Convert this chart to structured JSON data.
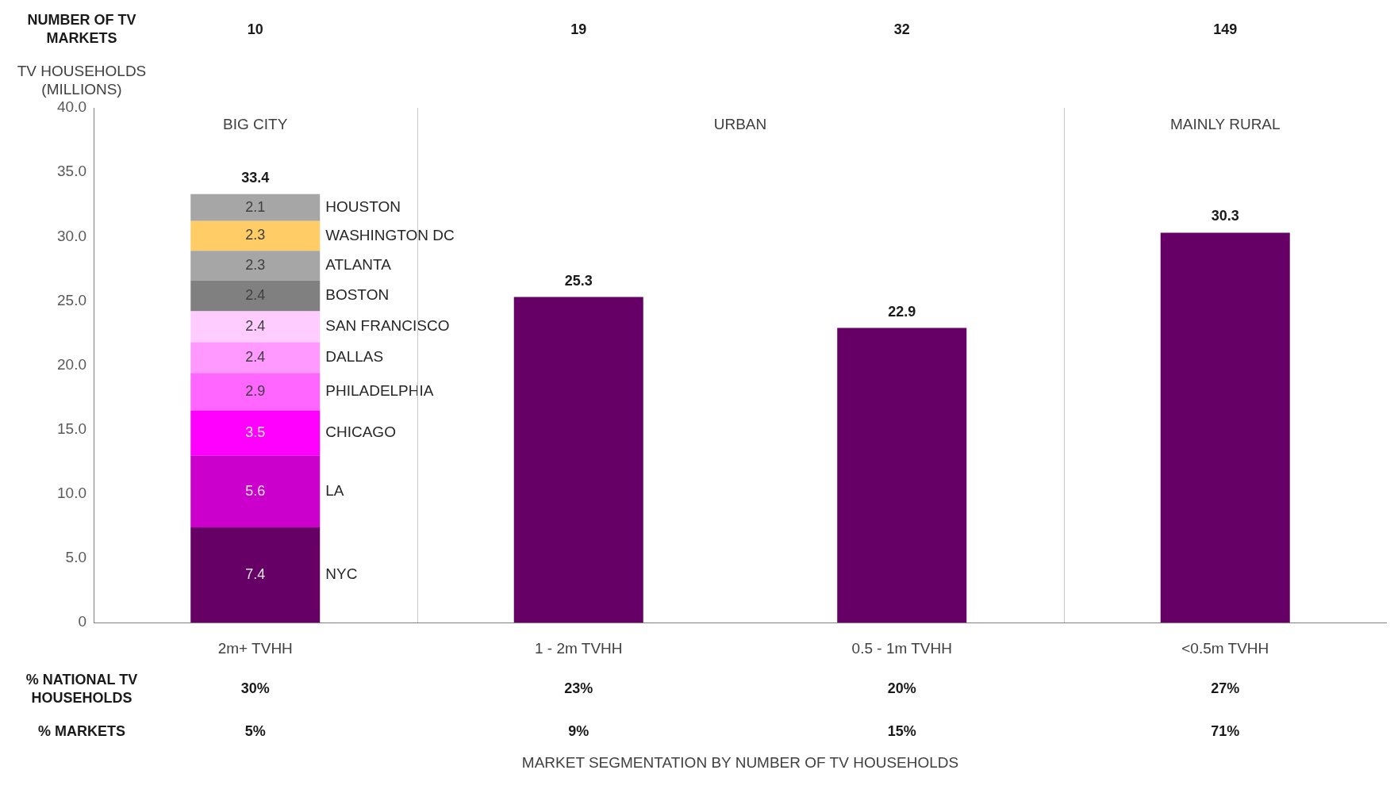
{
  "chart_data": {
    "type": "bar",
    "stacked": true,
    "ylabel": "TV HOUSEHOLDS (MILLIONS)",
    "categories": [
      "2m+ TVHH",
      "1 - 2m TVHH",
      "0.5 - 1m TVHH",
      "<0.5m TVHH"
    ],
    "ylim": [
      0,
      40
    ],
    "yticks": [
      0,
      {
        "value": 5,
        "label": "5.0"
      },
      {
        "value": 10,
        "label": "10.0"
      },
      {
        "value": 15,
        "label": "15.0"
      },
      {
        "value": 20,
        "label": "20.0"
      },
      {
        "value": 25,
        "label": "25.0"
      },
      {
        "value": 30,
        "label": "30.0"
      },
      {
        "value": 35,
        "label": "35.0"
      },
      {
        "value": 40,
        "label": "40.0"
      }
    ],
    "grid": false,
    "legend": false,
    "series": [
      {
        "name": "NYC",
        "color": "#660066",
        "values": [
          7.4,
          null,
          null,
          null
        ],
        "value_labels": [
          "7.4",
          null,
          null,
          null
        ]
      },
      {
        "name": "LA",
        "color": "#cc00cc",
        "values": [
          5.6,
          null,
          null,
          null
        ],
        "value_labels": [
          "5.6",
          null,
          null,
          null
        ]
      },
      {
        "name": "CHICAGO",
        "color": "#ff00ff",
        "values": [
          3.5,
          null,
          null,
          null
        ],
        "value_labels": [
          "3.5",
          null,
          null,
          null
        ]
      },
      {
        "name": "PHILADELPHIA",
        "color": "#ff66ff",
        "values": [
          2.9,
          null,
          null,
          null
        ],
        "value_labels": [
          "2.9",
          null,
          null,
          null
        ]
      },
      {
        "name": "DALLAS",
        "color": "#ff99ff",
        "values": [
          2.4,
          null,
          null,
          null
        ],
        "value_labels": [
          "2.4",
          null,
          null,
          null
        ]
      },
      {
        "name": "SAN FRANCISCO",
        "color": "#ffccff",
        "values": [
          2.4,
          null,
          null,
          null
        ],
        "value_labels": [
          "2.4",
          null,
          null,
          null
        ]
      },
      {
        "name": "BOSTON",
        "color": "#808080",
        "values": [
          2.4,
          null,
          null,
          null
        ],
        "value_labels": [
          "2.4",
          null,
          null,
          null
        ]
      },
      {
        "name": "ATLANTA",
        "color": "#a6a6a6",
        "values": [
          2.3,
          null,
          null,
          null
        ],
        "value_labels": [
          "2.3",
          null,
          null,
          null
        ]
      },
      {
        "name": "WASHINGTON DC",
        "color": "#ffcc66",
        "values": [
          2.3,
          null,
          null,
          null
        ],
        "value_labels": [
          "2.3",
          null,
          null,
          null
        ]
      },
      {
        "name": "HOUSTON",
        "color": "#a6a6a6",
        "values": [
          2.1,
          null,
          null,
          null
        ],
        "value_labels": [
          "2.1",
          null,
          null,
          null
        ]
      },
      {
        "color": "#660066",
        "values": [
          null,
          25.3,
          22.9,
          30.3
        ]
      }
    ],
    "totals": [
      "33.4",
      "25.3",
      "22.9",
      "30.3"
    ],
    "annotations": [
      "BIG CITY",
      "URBAN",
      "MAINLY RURAL",
      "NUMBER OF TV MARKETS",
      "10",
      "19",
      "32",
      "149",
      "% NATIONAL TV HOUSEHOLDS",
      "30%",
      "23%",
      "20%",
      "27%",
      "% MARKETS",
      "5%",
      "9%",
      "15%",
      "71%",
      "MARKET SEGMENTATION BY NUMBER OF TV HOUSEHOLDS"
    ]
  }
}
